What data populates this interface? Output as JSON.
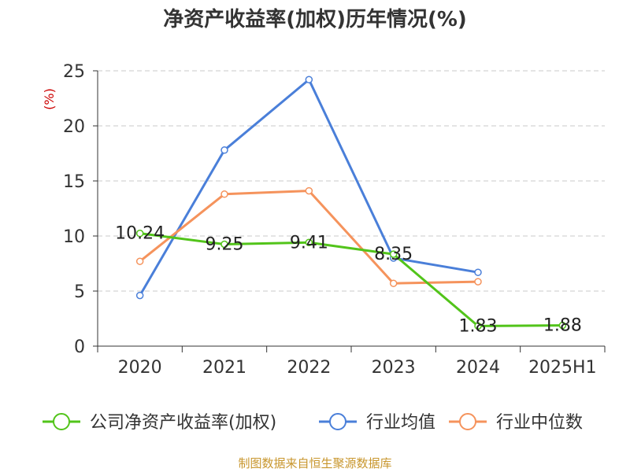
{
  "chart_data": {
    "type": "line",
    "title": "净资产收益率(加权)历年情况(%)",
    "ylabel": "(%)",
    "categories": [
      "2020",
      "2021",
      "2022",
      "2023",
      "2024",
      "2025H1"
    ],
    "ylim": [
      0,
      25
    ],
    "yticks": [
      0,
      5,
      10,
      15,
      20,
      25
    ],
    "grid": true,
    "legend_position": "bottom",
    "series": [
      {
        "name": "公司净资产收益率(加权)",
        "color": "#52c41a",
        "values": [
          10.24,
          9.25,
          9.41,
          8.35,
          1.83,
          1.88
        ],
        "labels": [
          "10.24",
          "9.25",
          "9.41",
          "8.35",
          "1.83",
          "1.88"
        ]
      },
      {
        "name": "行业均值",
        "color": "#4a7fd9",
        "values": [
          4.6,
          17.8,
          24.2,
          8.0,
          6.7,
          null
        ]
      },
      {
        "name": "行业中位数",
        "color": "#f5935c",
        "values": [
          7.7,
          13.8,
          14.1,
          5.7,
          5.85,
          null
        ]
      }
    ]
  },
  "source": "制图数据来自恒生聚源数据库"
}
